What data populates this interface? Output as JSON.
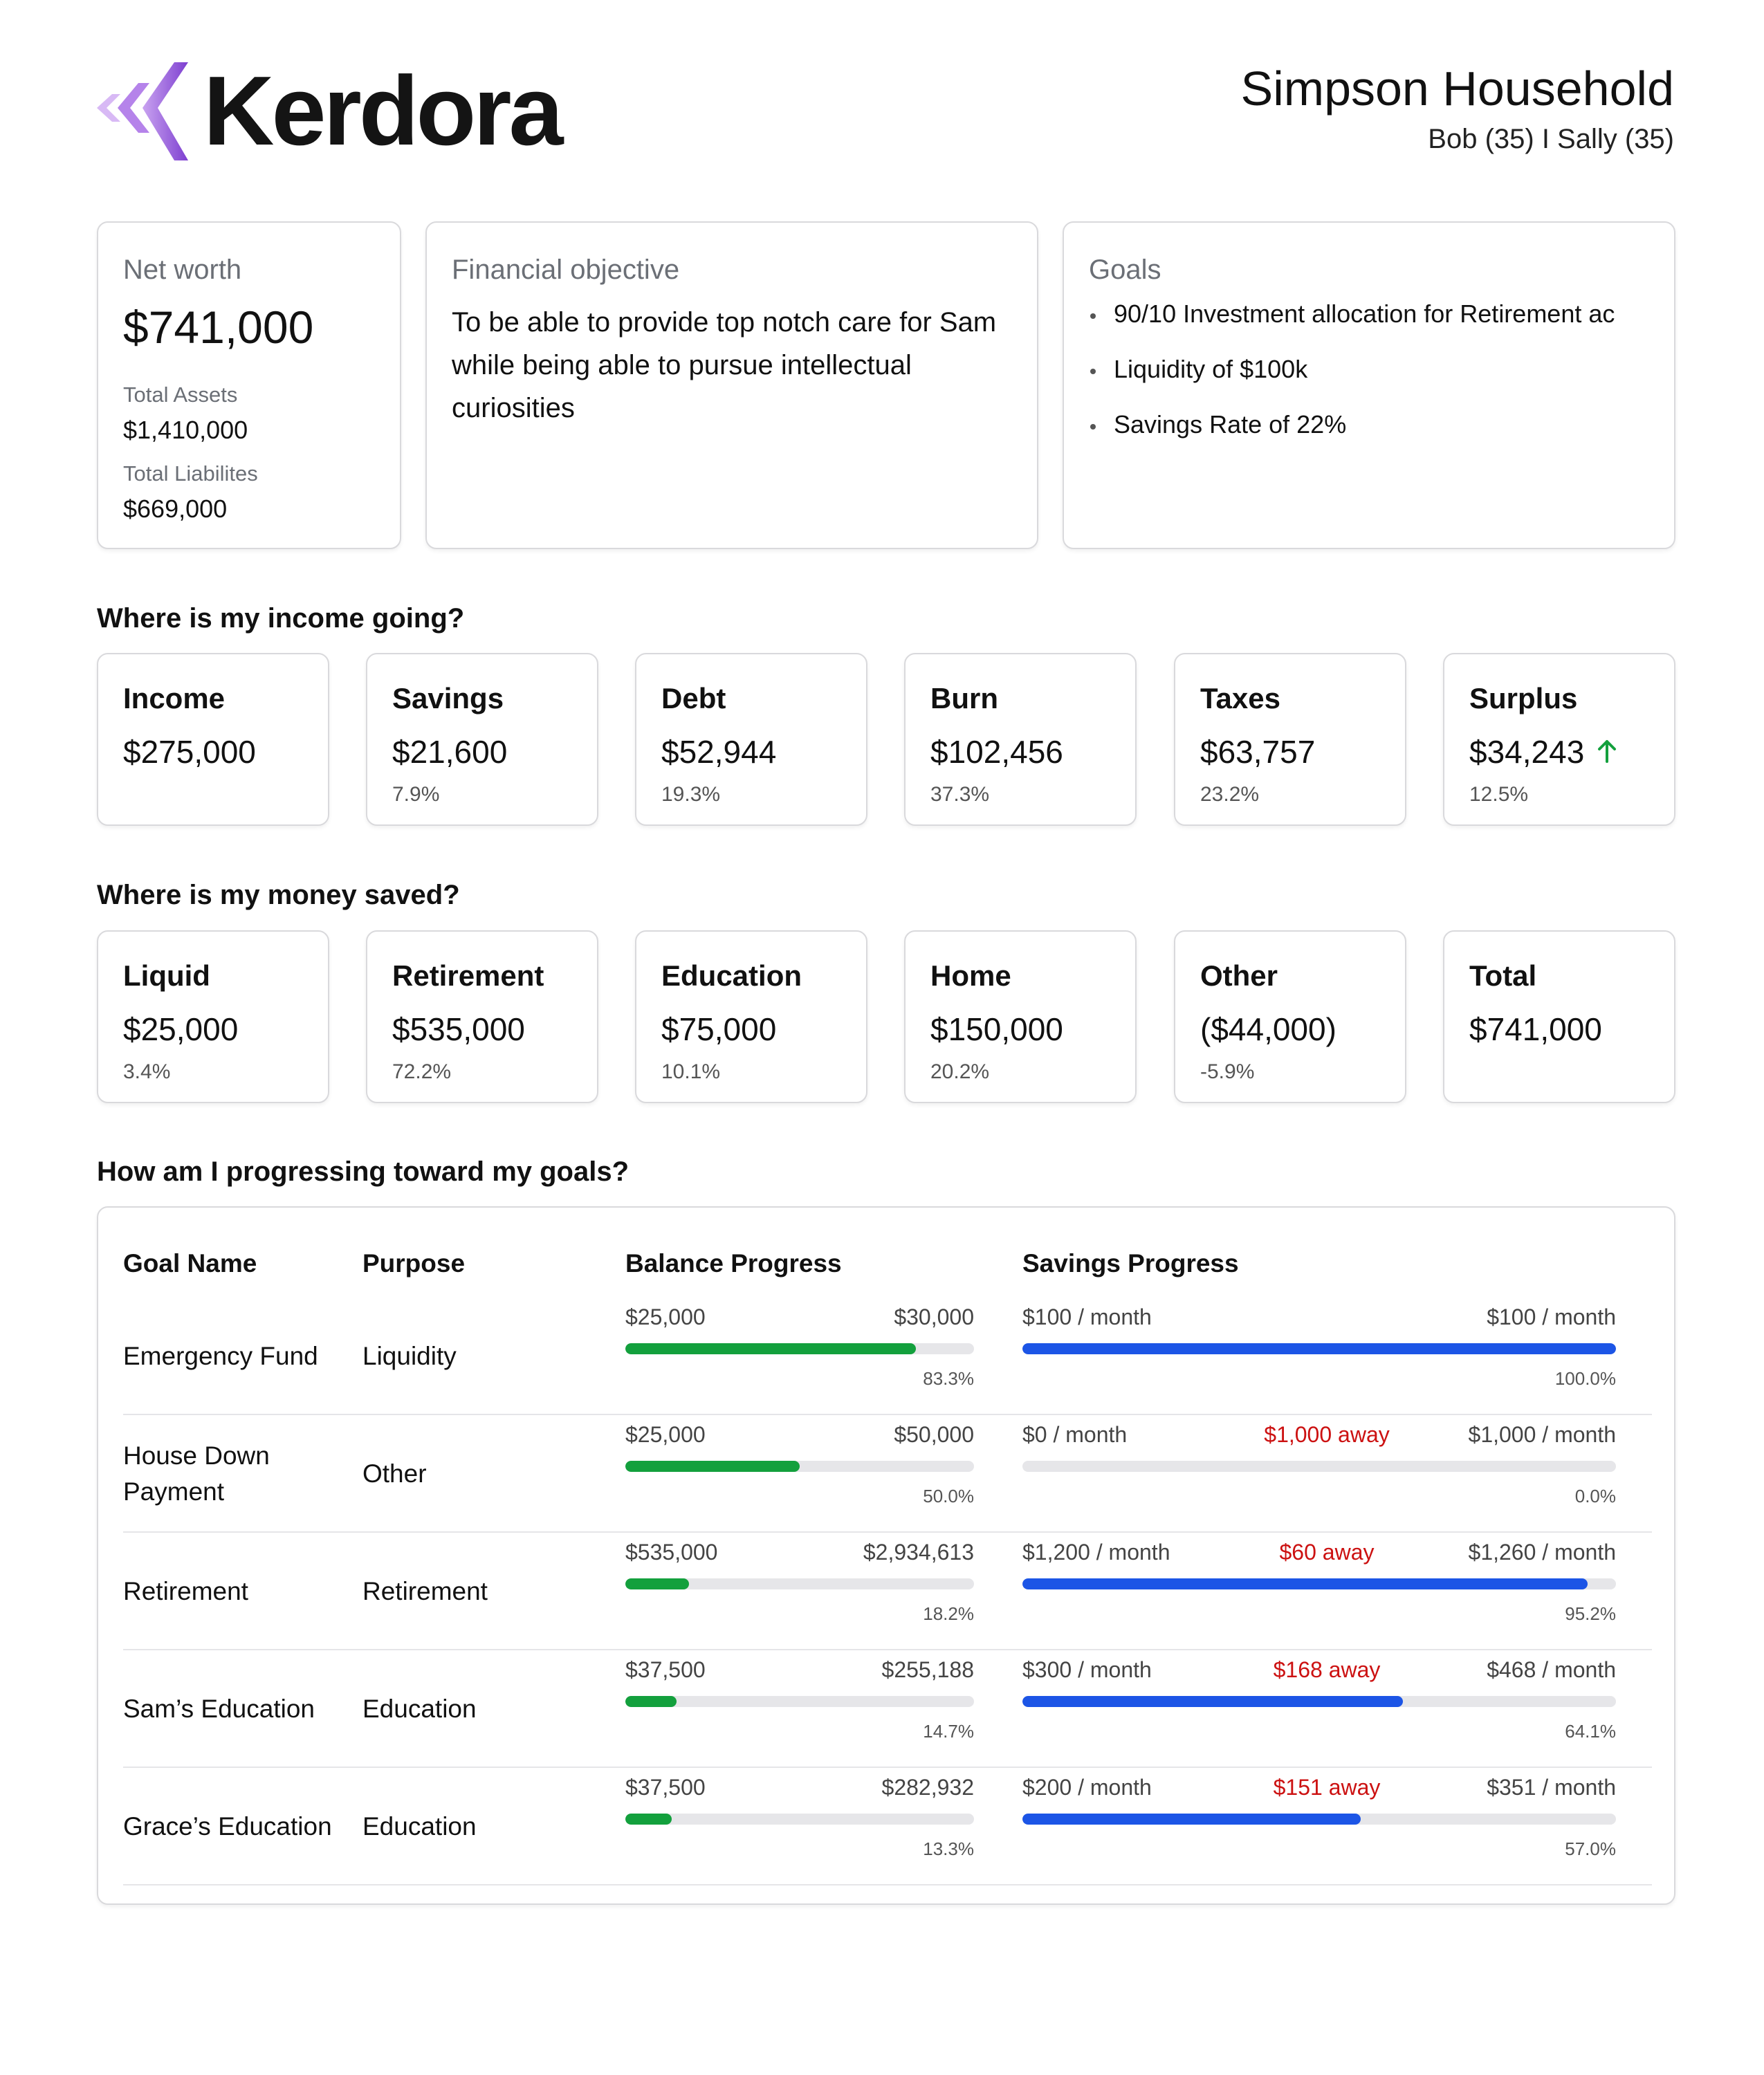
{
  "header": {
    "brand": "Kerdora",
    "household_name": "Simpson Household",
    "members": "Bob (35) I Sally (35)"
  },
  "net_worth": {
    "label": "Net worth",
    "value": "$741,000",
    "assets_label": "Total Assets",
    "assets_value": "$1,410,000",
    "liabilities_label": "Total Liabilites",
    "liabilities_value": "$669,000"
  },
  "objective": {
    "label": "Financial objective",
    "text": "To be able to provide top notch care for Sam while being able to pursue intellectual curiosities"
  },
  "goals": {
    "label": "Goals",
    "items": [
      "90/10 Investment allocation for Retirement ac",
      "Liquidity of $100k",
      "Savings Rate of 22%"
    ]
  },
  "income": {
    "title": "Where is my income going?",
    "cards": [
      {
        "title": "Income",
        "value": "$275,000",
        "pct": ""
      },
      {
        "title": "Savings",
        "value": "$21,600",
        "pct": "7.9%"
      },
      {
        "title": "Debt",
        "value": "$52,944",
        "pct": "19.3%"
      },
      {
        "title": "Burn",
        "value": "$102,456",
        "pct": "37.3%"
      },
      {
        "title": "Taxes",
        "value": "$63,757",
        "pct": "23.2%"
      },
      {
        "title": "Surplus",
        "value": "$34,243",
        "pct": "12.5%"
      }
    ]
  },
  "saved": {
    "title": "Where is my money saved?",
    "cards": [
      {
        "title": "Liquid",
        "value": "$25,000",
        "pct": "3.4%"
      },
      {
        "title": "Retirement",
        "value": "$535,000",
        "pct": "72.2%"
      },
      {
        "title": "Education",
        "value": "$75,000",
        "pct": "10.1%"
      },
      {
        "title": "Home",
        "value": "$150,000",
        "pct": "20.2%"
      },
      {
        "title": "Other",
        "value": "($44,000)",
        "pct": "-5.9%"
      },
      {
        "title": "Total",
        "value": "$741,000",
        "pct": ""
      }
    ]
  },
  "progress": {
    "title": "How am I progressing toward my goals?",
    "headers": {
      "goal": "Goal Name",
      "purpose": "Purpose",
      "balance": "Balance Progress",
      "savings": "Savings Progress"
    },
    "rows": [
      {
        "name": "Emergency Fund",
        "purpose": "Liquidity",
        "bal_start": "$25,000",
        "bal_end": "$30,000",
        "bal_pct": "83.3%",
        "bal_fill": 0.833,
        "sav_start": "$100 / month",
        "sav_away": "",
        "sav_end": "$100 / month",
        "sav_pct": "100.0%",
        "sav_fill": 1.0
      },
      {
        "name": "House Down Payment",
        "purpose": "Other",
        "bal_start": "$25,000",
        "bal_end": "$50,000",
        "bal_pct": "50.0%",
        "bal_fill": 0.5,
        "sav_start": "$0 / month",
        "sav_away": "$1,000 away",
        "sav_end": "$1,000 / month",
        "sav_pct": "0.0%",
        "sav_fill": 0.0
      },
      {
        "name": "Retirement",
        "purpose": "Retirement",
        "bal_start": "$535,000",
        "bal_end": "$2,934,613",
        "bal_pct": "18.2%",
        "bal_fill": 0.182,
        "sav_start": "$1,200 / month",
        "sav_away": "$60 away",
        "sav_end": "$1,260 / month",
        "sav_pct": "95.2%",
        "sav_fill": 0.952
      },
      {
        "name": "Sam’s Education",
        "purpose": "Education",
        "bal_start": "$37,500",
        "bal_end": "$255,188",
        "bal_pct": "14.7%",
        "bal_fill": 0.147,
        "sav_start": "$300 / month",
        "sav_away": "$168 away",
        "sav_end": "$468 / month",
        "sav_pct": "64.1%",
        "sav_fill": 0.641
      },
      {
        "name": "Grace’s Education",
        "purpose": "Education",
        "bal_start": "$37,500",
        "bal_end": "$282,932",
        "bal_pct": "13.3%",
        "bal_fill": 0.133,
        "sav_start": "$200 / month",
        "sav_away": "$151 away",
        "sav_end": "$351 / month",
        "sav_pct": "57.0%",
        "sav_fill": 0.57
      }
    ]
  },
  "colors": {
    "brand_purple": "#8a4bd6",
    "balance_bar": "#13a03d",
    "savings_bar": "#1c55e6",
    "away_text": "#cc1111",
    "surplus_arrow": "#13a03d"
  }
}
